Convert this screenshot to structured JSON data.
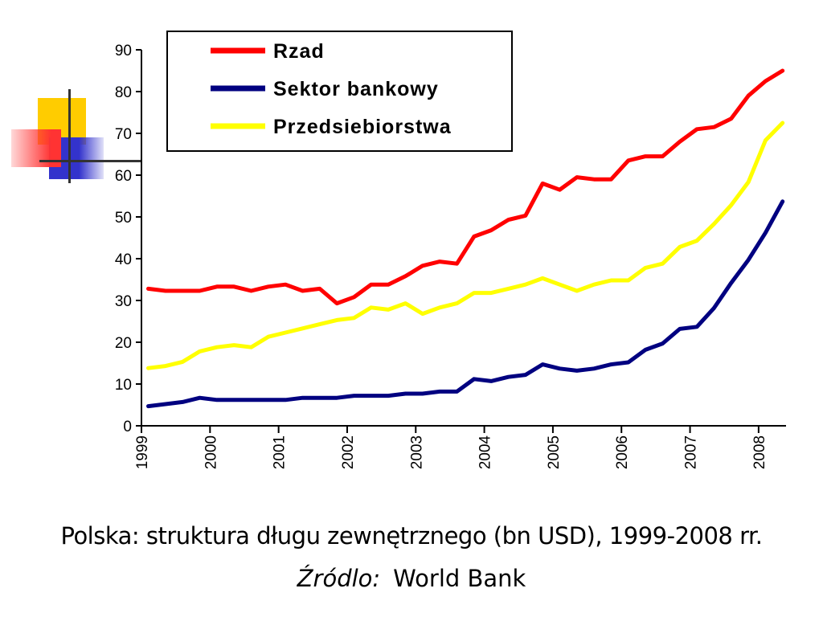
{
  "caption": "Polska: struktura długu zewnętrznego (bn USD), 1999-2008 rr.",
  "source": {
    "label": "Źródlo:",
    "value": "World Bank"
  },
  "chart_data": {
    "type": "line",
    "title": "",
    "xlabel": "",
    "ylabel": "",
    "xlim": [
      1999,
      2008.4
    ],
    "ylim": [
      0,
      90
    ],
    "yticks": [
      0,
      10,
      20,
      30,
      40,
      50,
      60,
      70,
      80,
      90
    ],
    "xticks": [
      "1999",
      "2000",
      "2001",
      "2002",
      "2003",
      "2004",
      "2005",
      "2006",
      "2007",
      "2008"
    ],
    "grid": false,
    "legend_position": "top",
    "x": [
      1999.1,
      1999.35,
      1999.6,
      1999.85,
      2000.1,
      2000.35,
      2000.6,
      2000.85,
      2001.1,
      2001.35,
      2001.6,
      2001.85,
      2002.1,
      2002.35,
      2002.6,
      2002.85,
      2003.1,
      2003.35,
      2003.6,
      2003.85,
      2004.1,
      2004.35,
      2004.6,
      2004.85,
      2005.1,
      2005.35,
      2005.6,
      2005.85,
      2006.1,
      2006.35,
      2006.6,
      2006.85,
      2007.1,
      2007.35,
      2007.6,
      2007.85,
      2008.1,
      2008.35
    ],
    "series": [
      {
        "name": "Rzad",
        "color": "#ff0000",
        "values": [
          32.8,
          32.3,
          32.3,
          32.3,
          33.3,
          33.3,
          32.3,
          33.3,
          33.8,
          32.3,
          32.8,
          29.3,
          30.8,
          33.8,
          33.8,
          35.8,
          38.3,
          39.3,
          38.8,
          45.3,
          46.8,
          49.3,
          50.3,
          58.0,
          56.5,
          59.5,
          59.0,
          59.0,
          63.5,
          64.5,
          64.5,
          68.0,
          71.0,
          71.5,
          73.5,
          79.0,
          82.5,
          85.0
        ]
      },
      {
        "name": "Sektor bankowy",
        "color": "#000080",
        "values": [
          4.7,
          5.2,
          5.7,
          6.7,
          6.2,
          6.2,
          6.2,
          6.2,
          6.2,
          6.7,
          6.7,
          6.7,
          7.2,
          7.2,
          7.2,
          7.7,
          7.7,
          8.2,
          8.2,
          11.2,
          10.7,
          11.7,
          12.2,
          14.7,
          13.7,
          13.2,
          13.7,
          14.7,
          15.2,
          18.2,
          19.7,
          23.2,
          23.7,
          28.2,
          34.2,
          39.7,
          46.2,
          53.7
        ]
      },
      {
        "name": "Przedsiebiorstwa",
        "color": "#ffff00",
        "values": [
          13.8,
          14.3,
          15.3,
          17.8,
          18.8,
          19.3,
          18.8,
          21.3,
          22.3,
          23.3,
          24.3,
          25.3,
          25.8,
          28.3,
          27.8,
          29.3,
          26.8,
          28.3,
          29.3,
          31.8,
          31.8,
          32.8,
          33.8,
          35.3,
          33.8,
          32.3,
          33.8,
          34.8,
          34.8,
          37.8,
          38.8,
          42.8,
          44.3,
          48.3,
          52.8,
          58.3,
          68.3,
          72.5
        ]
      }
    ]
  }
}
